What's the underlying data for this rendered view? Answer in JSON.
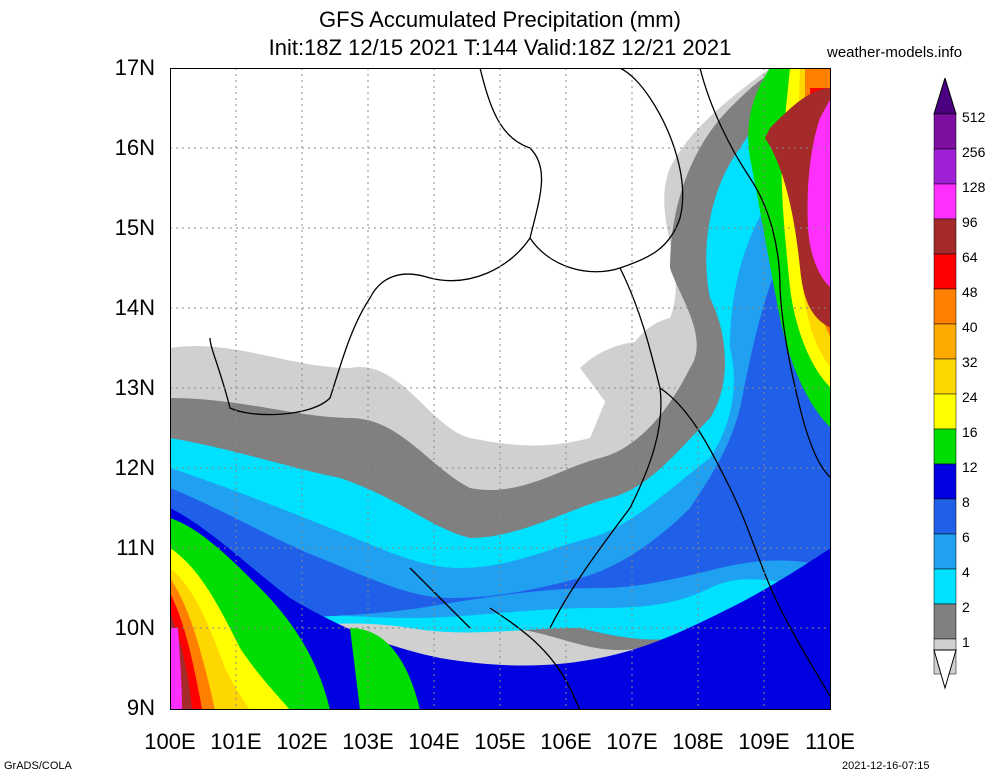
{
  "header": {
    "title_line1": "GFS Accumulated Precipitation (mm)",
    "title_line2": "Init:18Z 12/15 2021 T:144 Valid:18Z 12/21 2021",
    "credit": "weather-models.info"
  },
  "axes": {
    "y_labels": [
      "17N",
      "16N",
      "15N",
      "14N",
      "13N",
      "12N",
      "11N",
      "10N",
      "9N"
    ],
    "x_labels": [
      "100E",
      "101E",
      "102E",
      "103E",
      "104E",
      "105E",
      "106E",
      "107E",
      "108E",
      "109E",
      "110E"
    ]
  },
  "colorbar": {
    "labels": [
      "512",
      "256",
      "128",
      "96",
      "64",
      "48",
      "40",
      "32",
      "24",
      "16",
      "12",
      "8",
      "6",
      "4",
      "2",
      "1"
    ],
    "colors": [
      "#7c0fa0",
      "#a020d8",
      "#ff30ff",
      "#a52a2a",
      "#ff0000",
      "#ff7f00",
      "#ffaa00",
      "#ffd700",
      "#ffff00",
      "#00dd00",
      "#0000e0",
      "#2060e8",
      "#20a0f0",
      "#00e0ff",
      "#808080",
      "#d0d0d0"
    ]
  },
  "footer": {
    "left": "GrADS/COLA",
    "right": "2021-12-16-07:15"
  }
}
